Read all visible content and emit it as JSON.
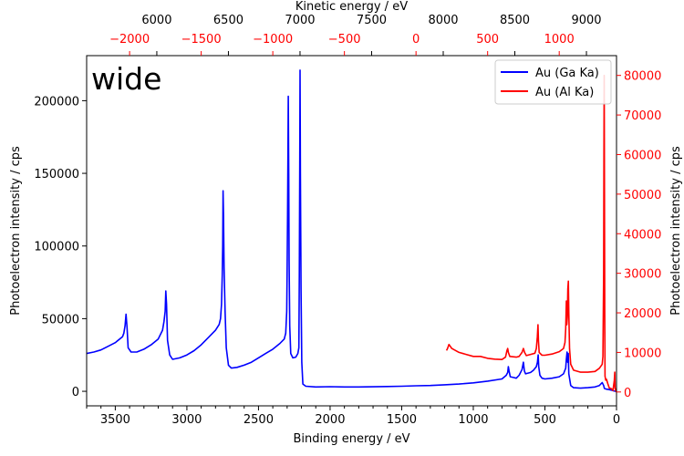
{
  "chart_data": {
    "type": "line",
    "panel_label": "wide",
    "colors": {
      "series_blue": "#0000ff",
      "series_red": "#ff0000",
      "axis": "#000000"
    },
    "axes": {
      "bottom": {
        "label": "Binding energy / eV",
        "range": [
          3700,
          0
        ],
        "ticks": [
          3500,
          3000,
          2500,
          2000,
          1500,
          1000,
          500,
          0
        ],
        "minor_step": 100
      },
      "top": {
        "label": "Kinetic energy / eV",
        "range": [
          5510,
          9210
        ],
        "ticks": [
          6000,
          6500,
          7000,
          7500,
          8000,
          8500,
          9000
        ],
        "tick_color": "#000000"
      },
      "top_secondary": {
        "label": "",
        "range": [
          -2300,
          1400
        ],
        "ticks": [
          -2000,
          -1500,
          -1000,
          -500,
          0,
          500,
          1000
        ],
        "tick_color": "#ff0000"
      },
      "left": {
        "label": "Photoelectron intensity / cps",
        "range": [
          -10000,
          231000
        ],
        "ticks": [
          0,
          50000,
          100000,
          150000,
          200000
        ]
      },
      "right": {
        "label": "Photoelectron intensity / cps",
        "range": [
          -3500,
          85000
        ],
        "ticks": [
          0,
          10000,
          20000,
          30000,
          40000,
          50000,
          60000,
          70000,
          80000
        ],
        "tick_color": "#ff0000"
      }
    },
    "legend": {
      "placement": "upper right",
      "entries": [
        {
          "name": "Au (Ga Ka)",
          "color": "#0000ff"
        },
        {
          "name": "Au (Al Ka)",
          "color": "#ff0000"
        }
      ]
    },
    "series": [
      {
        "name": "Au (Ga Ka)",
        "color": "#0000ff",
        "axis": "left",
        "points": [
          [
            3700,
            26000
          ],
          [
            3650,
            27000
          ],
          [
            3600,
            28500
          ],
          [
            3550,
            31000
          ],
          [
            3500,
            33500
          ],
          [
            3450,
            37500
          ],
          [
            3440,
            40000
          ],
          [
            3432,
            45000
          ],
          [
            3425,
            53000
          ],
          [
            3418,
            44000
          ],
          [
            3410,
            30000
          ],
          [
            3390,
            27000
          ],
          [
            3350,
            27000
          ],
          [
            3300,
            29000
          ],
          [
            3250,
            32000
          ],
          [
            3200,
            36000
          ],
          [
            3170,
            42000
          ],
          [
            3160,
            48000
          ],
          [
            3152,
            55000
          ],
          [
            3147,
            69000
          ],
          [
            3142,
            60000
          ],
          [
            3135,
            35000
          ],
          [
            3120,
            25000
          ],
          [
            3100,
            22000
          ],
          [
            3050,
            23000
          ],
          [
            3000,
            25000
          ],
          [
            2950,
            28000
          ],
          [
            2900,
            32000
          ],
          [
            2850,
            37000
          ],
          [
            2800,
            42000
          ],
          [
            2775,
            46000
          ],
          [
            2765,
            50000
          ],
          [
            2758,
            60000
          ],
          [
            2753,
            80000
          ],
          [
            2750,
            100000
          ],
          [
            2747,
            138000
          ],
          [
            2744,
            120000
          ],
          [
            2740,
            85000
          ],
          [
            2733,
            55000
          ],
          [
            2725,
            30000
          ],
          [
            2710,
            18000
          ],
          [
            2690,
            16000
          ],
          [
            2650,
            16500
          ],
          [
            2600,
            18000
          ],
          [
            2550,
            20000
          ],
          [
            2500,
            23000
          ],
          [
            2450,
            26000
          ],
          [
            2400,
            29000
          ],
          [
            2350,
            33000
          ],
          [
            2320,
            36000
          ],
          [
            2310,
            40000
          ],
          [
            2303,
            55000
          ],
          [
            2300,
            80000
          ],
          [
            2297,
            120000
          ],
          [
            2294,
            170000
          ],
          [
            2292,
            203000
          ],
          [
            2289,
            150000
          ],
          [
            2286,
            90000
          ],
          [
            2282,
            45000
          ],
          [
            2275,
            26000
          ],
          [
            2260,
            23000
          ],
          [
            2240,
            23500
          ],
          [
            2225,
            26000
          ],
          [
            2218,
            30000
          ],
          [
            2215,
            80000
          ],
          [
            2212,
            160000
          ],
          [
            2210,
            221000
          ],
          [
            2207,
            150000
          ],
          [
            2203,
            70000
          ],
          [
            2198,
            20000
          ],
          [
            2190,
            5000
          ],
          [
            2170,
            3500
          ],
          [
            2100,
            3000
          ],
          [
            2000,
            3200
          ],
          [
            1900,
            3000
          ],
          [
            1800,
            3000
          ],
          [
            1700,
            3100
          ],
          [
            1600,
            3300
          ],
          [
            1500,
            3500
          ],
          [
            1400,
            3800
          ],
          [
            1300,
            4000
          ],
          [
            1200,
            4500
          ],
          [
            1100,
            5000
          ],
          [
            1000,
            5800
          ],
          [
            900,
            7000
          ],
          [
            800,
            8500
          ],
          [
            770,
            11000
          ],
          [
            760,
            13000
          ],
          [
            755,
            17000
          ],
          [
            750,
            14000
          ],
          [
            742,
            10000
          ],
          [
            720,
            9500
          ],
          [
            700,
            9000
          ],
          [
            680,
            11000
          ],
          [
            660,
            15000
          ],
          [
            650,
            20000
          ],
          [
            643,
            14000
          ],
          [
            635,
            12000
          ],
          [
            600,
            13000
          ],
          [
            580,
            14500
          ],
          [
            560,
            17000
          ],
          [
            552,
            20000
          ],
          [
            547,
            25000
          ],
          [
            543,
            17000
          ],
          [
            535,
            11000
          ],
          [
            520,
            9000
          ],
          [
            500,
            8500
          ],
          [
            450,
            9000
          ],
          [
            400,
            10000
          ],
          [
            370,
            12000
          ],
          [
            355,
            16000
          ],
          [
            350,
            22000
          ],
          [
            345,
            27000
          ],
          [
            341,
            20000
          ],
          [
            337,
            26000
          ],
          [
            333,
            12000
          ],
          [
            320,
            4000
          ],
          [
            300,
            2500
          ],
          [
            250,
            2200
          ],
          [
            200,
            2500
          ],
          [
            150,
            3000
          ],
          [
            120,
            4000
          ],
          [
            100,
            6000
          ],
          [
            90,
            4000
          ],
          [
            85,
            2000
          ],
          [
            70,
            1500
          ],
          [
            50,
            1200
          ],
          [
            35,
            800
          ],
          [
            20,
            300
          ],
          [
            10,
            100
          ],
          [
            0,
            0
          ]
        ]
      },
      {
        "name": "Au (Al Ka)",
        "color": "#ff0000",
        "axis": "right",
        "points": [
          [
            1187,
            10500
          ],
          [
            1180,
            11000
          ],
          [
            1170,
            12000
          ],
          [
            1160,
            11500
          ],
          [
            1150,
            11000
          ],
          [
            1100,
            10000
          ],
          [
            1050,
            9500
          ],
          [
            1000,
            9000
          ],
          [
            950,
            9000
          ],
          [
            900,
            8500
          ],
          [
            850,
            8300
          ],
          [
            800,
            8200
          ],
          [
            775,
            8800
          ],
          [
            765,
            10500
          ],
          [
            760,
            11000
          ],
          [
            755,
            10000
          ],
          [
            745,
            9000
          ],
          [
            700,
            8800
          ],
          [
            680,
            9000
          ],
          [
            660,
            10000
          ],
          [
            650,
            11000
          ],
          [
            642,
            10000
          ],
          [
            630,
            9200
          ],
          [
            600,
            9500
          ],
          [
            570,
            9800
          ],
          [
            560,
            11000
          ],
          [
            553,
            14000
          ],
          [
            548,
            17000
          ],
          [
            545,
            13000
          ],
          [
            540,
            10000
          ],
          [
            520,
            9300
          ],
          [
            500,
            9300
          ],
          [
            450,
            9600
          ],
          [
            400,
            10200
          ],
          [
            370,
            11000
          ],
          [
            360,
            12500
          ],
          [
            355,
            16000
          ],
          [
            350,
            23000
          ],
          [
            347,
            17000
          ],
          [
            343,
            19000
          ],
          [
            340,
            26000
          ],
          [
            336,
            28000
          ],
          [
            333,
            20000
          ],
          [
            328,
            11000
          ],
          [
            320,
            7000
          ],
          [
            300,
            5500
          ],
          [
            250,
            5000
          ],
          [
            200,
            5000
          ],
          [
            150,
            5200
          ],
          [
            120,
            6000
          ],
          [
            100,
            7000
          ],
          [
            95,
            9000
          ],
          [
            90,
            30000
          ],
          [
            88,
            60000
          ],
          [
            86,
            80000
          ],
          [
            84,
            50000
          ],
          [
            82,
            20000
          ],
          [
            80,
            4000
          ],
          [
            75,
            3000
          ],
          [
            70,
            3200
          ],
          [
            60,
            2000
          ],
          [
            50,
            1000
          ],
          [
            35,
            800
          ],
          [
            25,
            400
          ],
          [
            15,
            3000
          ],
          [
            12,
            5000
          ],
          [
            10,
            1000
          ],
          [
            5,
            300
          ],
          [
            0,
            0
          ]
        ]
      }
    ]
  }
}
